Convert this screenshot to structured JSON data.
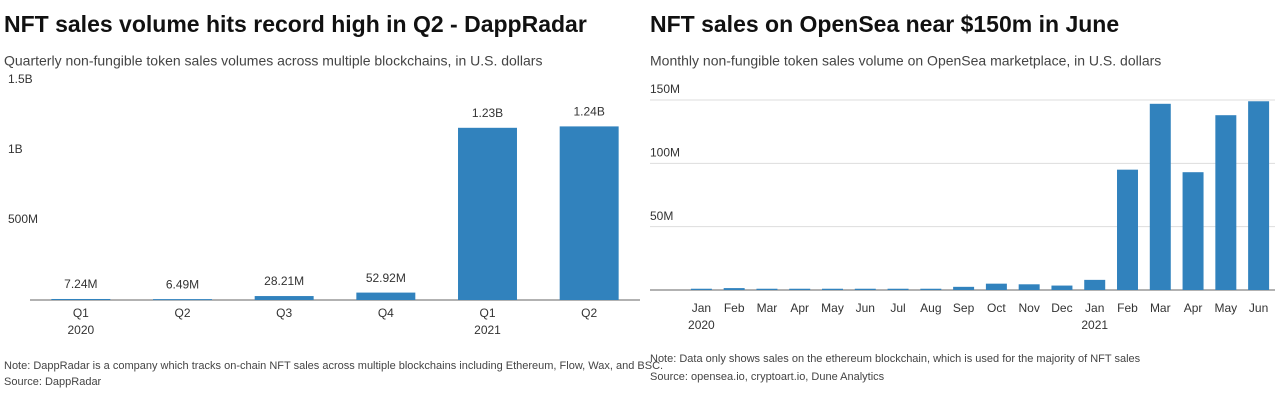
{
  "chart_data": [
    {
      "type": "bar",
      "title": "NFT sales volume hits record high in Q2 - DappRadar",
      "subtitle": "Quarterly non-fungible token sales volumes across multiple blockchains, in U.S. dollars",
      "categories": [
        "Q1",
        "Q2",
        "Q3",
        "Q4",
        "Q1",
        "Q2"
      ],
      "x_sublabels": [
        "2020",
        null,
        null,
        null,
        "2021",
        null
      ],
      "values": [
        7240000,
        6490000,
        28210000,
        52920000,
        1230000000,
        1240000000
      ],
      "value_labels": [
        "7.24M",
        "6.49M",
        "28.21M",
        "52.92M",
        "1.23B",
        "1.24B"
      ],
      "color": "#3182bd",
      "ylim": [
        0,
        1500000000
      ],
      "yticks": [
        {
          "value": 500000000,
          "label": "500M"
        },
        {
          "value": 1000000000,
          "label": "1B"
        },
        {
          "value": 1500000000,
          "label": "1.5B"
        }
      ],
      "grid": false,
      "note": "Note: DappRadar is a company which tracks on-chain NFT sales across multiple blockchains including Ethereum, Flow, Wax, and BSC.",
      "source": "Source: DappRadar"
    },
    {
      "type": "bar",
      "title": "NFT sales on OpenSea near $150m in June",
      "subtitle": "Monthly non-fungible token sales volume on OpenSea marketplace, in U.S. dollars",
      "categories": [
        "Jan",
        "Feb",
        "Mar",
        "Apr",
        "May",
        "Jun",
        "Jul",
        "Aug",
        "Sep",
        "Oct",
        "Nov",
        "Dec",
        "Jan",
        "Feb",
        "Mar",
        "Apr",
        "May",
        "Jun"
      ],
      "x_sublabels": [
        "2020",
        null,
        null,
        null,
        null,
        null,
        null,
        null,
        null,
        null,
        null,
        null,
        "2021",
        null,
        null,
        null,
        null,
        null
      ],
      "values": [
        1000000,
        1500000,
        1000000,
        1000000,
        1000000,
        1000000,
        1000000,
        1000000,
        2500000,
        5000000,
        4500000,
        3500000,
        8000000,
        95000000,
        147000000,
        93000000,
        138000000,
        149000000
      ],
      "color": "#3182bd",
      "ylim": [
        0,
        150000000
      ],
      "yticks": [
        {
          "value": 50000000,
          "label": "50M"
        },
        {
          "value": 100000000,
          "label": "100M"
        },
        {
          "value": 150000000,
          "label": "150M"
        }
      ],
      "grid": true,
      "note": "Note: Data only shows sales on the ethereum blockchain, which is used for the majority of NFT sales",
      "source": "Source: opensea.io, cryptoart.io, Dune Analytics"
    }
  ]
}
